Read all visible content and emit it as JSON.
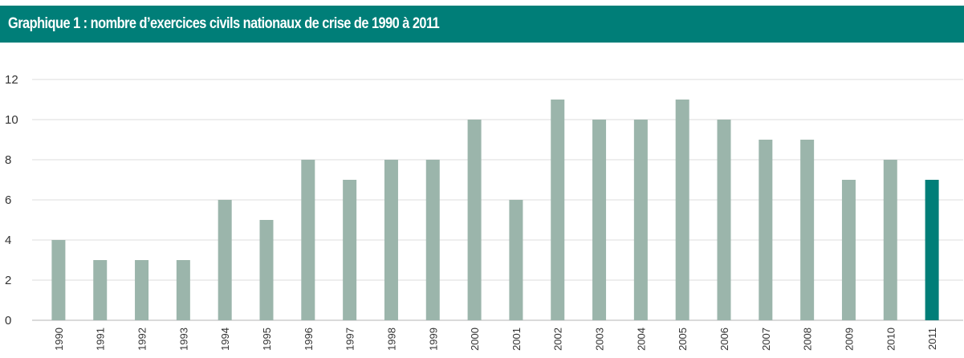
{
  "chart_data": {
    "type": "bar",
    "title": "Graphique 1 : nombre d’exercices civils nationaux de crise de 1990 à 2011",
    "xlabel": "",
    "ylabel": "",
    "categories": [
      "1990",
      "1991",
      "1992",
      "1993",
      "1994",
      "1995",
      "1996",
      "1997",
      "1998",
      "1999",
      "2000",
      "2001",
      "2002",
      "2003",
      "2004",
      "2005",
      "2006",
      "2007",
      "2008",
      "2009",
      "2010",
      "2011"
    ],
    "values": [
      4,
      3,
      3,
      3,
      6,
      5,
      8,
      7,
      8,
      8,
      10,
      6,
      11,
      10,
      10,
      11,
      10,
      9,
      9,
      7,
      8,
      7
    ],
    "ylim": [
      0,
      12
    ],
    "yticks": [
      0,
      2,
      4,
      6,
      8,
      10,
      12
    ],
    "grid": true,
    "legend": "none",
    "colors": {
      "bar": "#9bb5ab",
      "highlight_bar": "#007e78",
      "highlight_category": "2011",
      "grid": "#dcdcdc",
      "title_bar": "#007e78"
    }
  }
}
